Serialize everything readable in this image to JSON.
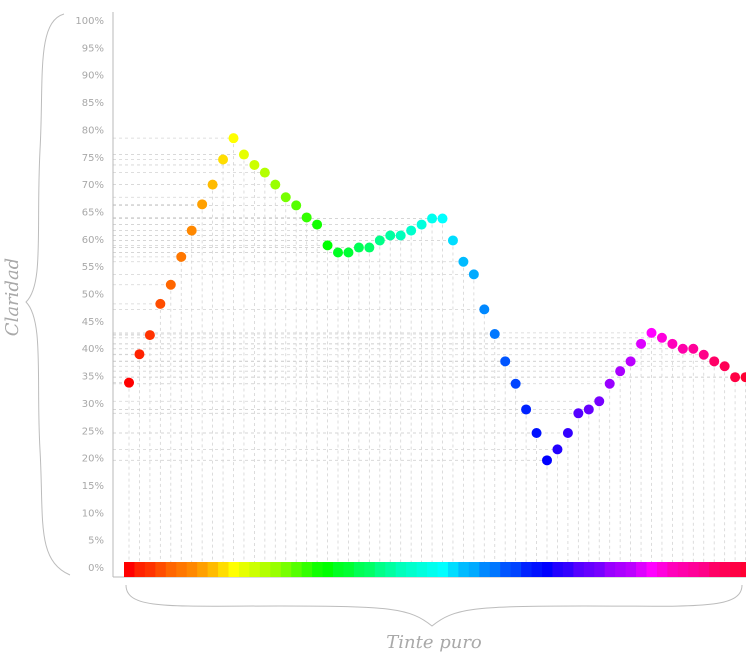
{
  "chart_data": {
    "type": "scatter",
    "xlabel": "Tinte puro",
    "ylabel": "Claridad",
    "ylim": [
      0,
      100
    ],
    "y_ticks": [
      "0%",
      "5%",
      "10%",
      "15%",
      "20%",
      "25%",
      "30%",
      "35%",
      "40%",
      "45%",
      "50%",
      "55%",
      "60%",
      "65%",
      "70%",
      "75%",
      "80%",
      "85%",
      "90%",
      "95%",
      "100%"
    ],
    "grid": "dashed drop lines from each point to the axes",
    "points": [
      {
        "color": "#ff0000",
        "y": 33.7
      },
      {
        "color": "#ff2200",
        "y": 38.9
      },
      {
        "color": "#ff3300",
        "y": 42.4
      },
      {
        "color": "#ff4d00",
        "y": 48.1
      },
      {
        "color": "#ff6600",
        "y": 51.6
      },
      {
        "color": "#ff7700",
        "y": 56.7
      },
      {
        "color": "#ff8800",
        "y": 61.5
      },
      {
        "color": "#ffa000",
        "y": 66.3
      },
      {
        "color": "#ffbb00",
        "y": 69.9
      },
      {
        "color": "#ffdd00",
        "y": 74.5
      },
      {
        "color": "#ffff00",
        "y": 78.4
      },
      {
        "color": "#e6ff00",
        "y": 75.4
      },
      {
        "color": "#ccff00",
        "y": 73.5
      },
      {
        "color": "#b3ff00",
        "y": 72.1
      },
      {
        "color": "#99ff00",
        "y": 69.9
      },
      {
        "color": "#77ff00",
        "y": 67.6
      },
      {
        "color": "#55ff00",
        "y": 66.1
      },
      {
        "color": "#33ff00",
        "y": 63.9
      },
      {
        "color": "#11ff00",
        "y": 62.6
      },
      {
        "color": "#00ff00",
        "y": 58.8
      },
      {
        "color": "#00ff22",
        "y": 57.5
      },
      {
        "color": "#00ff33",
        "y": 57.5
      },
      {
        "color": "#00ff55",
        "y": 58.4
      },
      {
        "color": "#00ff66",
        "y": 58.4
      },
      {
        "color": "#00ff88",
        "y": 59.7
      },
      {
        "color": "#00ffa0",
        "y": 60.6
      },
      {
        "color": "#00ffbb",
        "y": 60.6
      },
      {
        "color": "#00ffcc",
        "y": 61.5
      },
      {
        "color": "#00ffdd",
        "y": 62.6
      },
      {
        "color": "#00ffee",
        "y": 63.7
      },
      {
        "color": "#00ffff",
        "y": 63.7
      },
      {
        "color": "#00ddff",
        "y": 59.7
      },
      {
        "color": "#00bbff",
        "y": 55.8
      },
      {
        "color": "#00aaff",
        "y": 53.5
      },
      {
        "color": "#0088ff",
        "y": 47.1
      },
      {
        "color": "#0077ff",
        "y": 42.6
      },
      {
        "color": "#0055ff",
        "y": 37.6
      },
      {
        "color": "#0044ff",
        "y": 33.5
      },
      {
        "color": "#0022ff",
        "y": 28.8
      },
      {
        "color": "#0011ff",
        "y": 24.5
      },
      {
        "color": "#0000ff",
        "y": 19.5
      },
      {
        "color": "#2200ff",
        "y": 21.5
      },
      {
        "color": "#3300ff",
        "y": 24.5
      },
      {
        "color": "#5500ff",
        "y": 28.1
      },
      {
        "color": "#6600ff",
        "y": 28.8
      },
      {
        "color": "#7700ff",
        "y": 30.3
      },
      {
        "color": "#9900ff",
        "y": 33.5
      },
      {
        "color": "#aa00ff",
        "y": 35.8
      },
      {
        "color": "#bb00ff",
        "y": 37.6
      },
      {
        "color": "#dd00ff",
        "y": 40.8
      },
      {
        "color": "#ff00ff",
        "y": 42.8
      },
      {
        "color": "#ff00dd",
        "y": 41.9
      },
      {
        "color": "#ff00bb",
        "y": 40.8
      },
      {
        "color": "#ff00aa",
        "y": 39.9
      },
      {
        "color": "#ff0099",
        "y": 39.9
      },
      {
        "color": "#ff0088",
        "y": 38.8
      },
      {
        "color": "#ff0066",
        "y": 37.6
      },
      {
        "color": "#ff0055",
        "y": 36.7
      },
      {
        "color": "#ff0044",
        "y": 34.7
      },
      {
        "color": "#ff0033",
        "y": 34.7
      }
    ]
  }
}
